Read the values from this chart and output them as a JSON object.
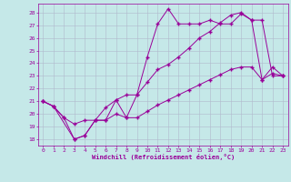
{
  "xlabel": "Windchill (Refroidissement éolien,°C)",
  "xlim": [
    -0.5,
    23.5
  ],
  "ylim": [
    17.5,
    28.7
  ],
  "xticks": [
    0,
    1,
    2,
    3,
    4,
    5,
    6,
    7,
    8,
    9,
    10,
    11,
    12,
    13,
    14,
    15,
    16,
    17,
    18,
    19,
    20,
    21,
    22,
    23
  ],
  "yticks": [
    18,
    19,
    20,
    21,
    22,
    23,
    24,
    25,
    26,
    27,
    28
  ],
  "bg_color": "#c5e8e8",
  "line_color": "#990099",
  "grid_color": "#b0b8cc",
  "line1_x": [
    0,
    1,
    3,
    4,
    5,
    6,
    7,
    8,
    9,
    10,
    11,
    12,
    13,
    14,
    15,
    16,
    17,
    18,
    19,
    20,
    21,
    22,
    23
  ],
  "line1_y": [
    21.0,
    20.6,
    18.0,
    18.3,
    19.5,
    19.5,
    21.1,
    19.7,
    21.5,
    24.5,
    27.1,
    28.3,
    27.1,
    27.1,
    27.1,
    27.4,
    27.1,
    27.1,
    27.9,
    27.4,
    27.4,
    23.0,
    23.0
  ],
  "line2_x": [
    0,
    1,
    2,
    3,
    4,
    5,
    6,
    7,
    8,
    9,
    10,
    11,
    12,
    13,
    14,
    15,
    16,
    17,
    18,
    19,
    20,
    21,
    22,
    23
  ],
  "line2_y": [
    21.0,
    20.6,
    19.7,
    19.2,
    19.5,
    19.5,
    20.5,
    21.1,
    21.5,
    21.5,
    22.5,
    23.5,
    23.9,
    24.5,
    25.2,
    26.0,
    26.5,
    27.2,
    27.8,
    28.0,
    27.4,
    22.7,
    23.7,
    23.0
  ],
  "line3_x": [
    0,
    1,
    2,
    3,
    4,
    5,
    6,
    7,
    8,
    9,
    10,
    11,
    12,
    13,
    14,
    15,
    16,
    17,
    18,
    19,
    20,
    21,
    22,
    23
  ],
  "line3_y": [
    21.0,
    20.6,
    19.7,
    18.0,
    18.3,
    19.5,
    19.5,
    20.0,
    19.7,
    19.7,
    20.2,
    20.7,
    21.1,
    21.5,
    21.9,
    22.3,
    22.7,
    23.1,
    23.5,
    23.7,
    23.7,
    22.7,
    23.2,
    23.0
  ]
}
